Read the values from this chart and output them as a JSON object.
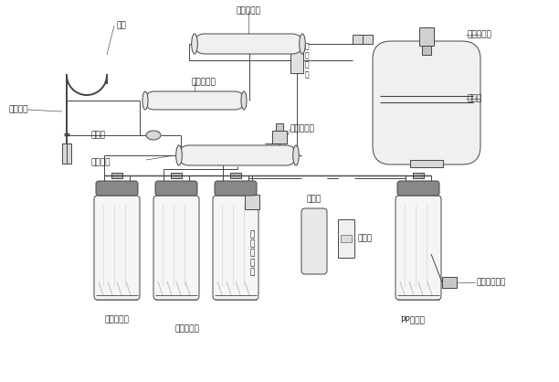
{
  "bg_color": "#ffffff",
  "lc": "#444444",
  "lc_dark": "#222222",
  "lc_gray": "#888888",
  "lc_light": "#bbbbbb",
  "fs": 6.5,
  "fs_small": 5.5,
  "lw": 0.7,
  "labels": {
    "pure_water": "纯水",
    "pure_water_faucet": "纯水龙头",
    "post_antibacterial": "后置抑菌膜",
    "check_valve": "逆止阀",
    "ro_membrane": "反渗透膜",
    "post_carbon": "后置活性碳",
    "high_pressure_switch": "高\n压\n开\n关",
    "pressure_tank_valve": "压力桶球阀",
    "pressure_tank": "压力桶",
    "waste_solenoid": "废水电磁阀",
    "boost_pump": "增压泵",
    "flow_meter": "流量计",
    "inlet_solenoid": "进\n水\n电\n磁\n阀",
    "compressed_carbon": "压缩活性碳",
    "granular_carbon": "颗粒活性碳",
    "pp_filter": "PP棉滤芯",
    "pre_filter_connector": "前置过滤接头"
  }
}
